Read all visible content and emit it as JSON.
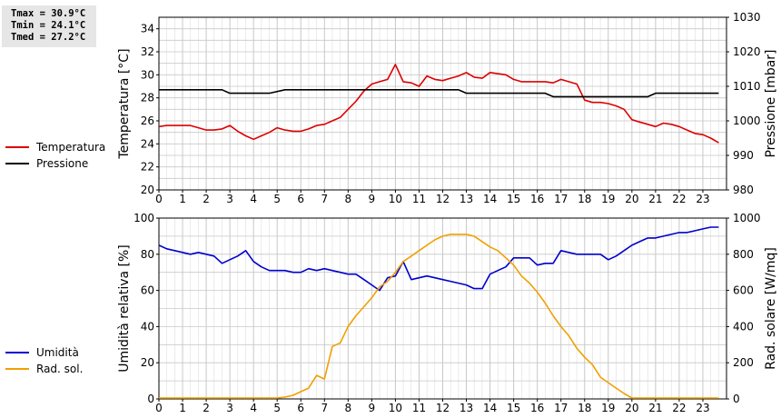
{
  "stats": {
    "tmax": "Tmax = 30.9°C",
    "tmin": "Tmin = 24.1°C",
    "tmed": "Tmed = 27.2°C"
  },
  "colors": {
    "temperature": "#dd0000",
    "pressure": "#000000",
    "humidity": "#0000cc",
    "radiation": "#f0a000",
    "grid": "#c8c8c8"
  },
  "chart_data": [
    {
      "type": "line",
      "xlabel": "",
      "ylabel": "Temperatura [°C]",
      "y2label": "Pressione [mbar]",
      "xlim": [
        0,
        24
      ],
      "xticks": [
        0,
        1,
        2,
        3,
        4,
        5,
        6,
        7,
        8,
        9,
        10,
        11,
        12,
        13,
        14,
        15,
        16,
        17,
        18,
        19,
        20,
        21,
        22,
        23
      ],
      "ylim": [
        20,
        35
      ],
      "yticks": [
        20,
        22,
        24,
        26,
        28,
        30,
        32,
        34
      ],
      "y2lim": [
        980,
        1030
      ],
      "y2ticks": [
        980,
        990,
        1000,
        1010,
        1020,
        1030
      ],
      "grid": true,
      "legend_placement": "left",
      "series": [
        {
          "name": "Temperatura",
          "axis": "left",
          "color": "#dd0000",
          "x": [
            0,
            0.33,
            0.67,
            1,
            1.33,
            1.67,
            2,
            2.33,
            2.67,
            3,
            3.33,
            3.67,
            4,
            4.33,
            4.67,
            5,
            5.33,
            5.67,
            6,
            6.33,
            6.67,
            7,
            7.33,
            7.67,
            8,
            8.33,
            8.67,
            9,
            9.33,
            9.67,
            10,
            10.33,
            10.67,
            11,
            11.33,
            11.67,
            12,
            12.33,
            12.67,
            13,
            13.33,
            13.67,
            14,
            14.33,
            14.67,
            15,
            15.33,
            15.67,
            16,
            16.33,
            16.67,
            17,
            17.33,
            17.67,
            18,
            18.33,
            18.67,
            19,
            19.33,
            19.67,
            20,
            20.33,
            20.67,
            21,
            21.33,
            21.67,
            22,
            22.33,
            22.67,
            23,
            23.33,
            23.67
          ],
          "y": [
            25.5,
            25.6,
            25.6,
            25.6,
            25.6,
            25.4,
            25.2,
            25.2,
            25.3,
            25.6,
            25.1,
            24.7,
            24.4,
            24.7,
            25.0,
            25.4,
            25.2,
            25.1,
            25.1,
            25.3,
            25.6,
            25.7,
            26.0,
            26.3,
            27.0,
            27.7,
            28.6,
            29.2,
            29.4,
            29.6,
            30.9,
            29.4,
            29.3,
            29.0,
            29.9,
            29.6,
            29.5,
            29.7,
            29.9,
            30.2,
            29.8,
            29.7,
            30.2,
            30.1,
            30.0,
            29.6,
            29.4,
            29.4,
            29.4,
            29.4,
            29.3,
            29.6,
            29.4,
            29.2,
            27.8,
            27.6,
            27.6,
            27.5,
            27.3,
            27.0,
            26.1,
            25.9,
            25.7,
            25.5,
            25.8,
            25.7,
            25.5,
            25.2,
            24.9,
            24.8,
            24.5,
            24.1
          ]
        },
        {
          "name": "Pressione",
          "axis": "right",
          "color": "#000000",
          "x": [
            0,
            2.67,
            3,
            4.67,
            5.33,
            8.67,
            9,
            12.67,
            13,
            16.33,
            16.67,
            20.67,
            21,
            23.67
          ],
          "y": [
            1009,
            1009,
            1008,
            1008,
            1009,
            1009,
            1009,
            1009,
            1008,
            1008,
            1007,
            1007,
            1008,
            1008
          ]
        }
      ]
    },
    {
      "type": "line",
      "xlabel": "",
      "ylabel": "Umidità relativa [%]",
      "y2label": "Rad. solare [W/mq]",
      "xlim": [
        0,
        24
      ],
      "xticks": [
        0,
        1,
        2,
        3,
        4,
        5,
        6,
        7,
        8,
        9,
        10,
        11,
        12,
        13,
        14,
        15,
        16,
        17,
        18,
        19,
        20,
        21,
        22,
        23
      ],
      "ylim": [
        0,
        100
      ],
      "yticks": [
        0,
        20,
        40,
        60,
        80,
        100
      ],
      "y2lim": [
        0,
        1000
      ],
      "y2ticks": [
        0,
        200,
        400,
        600,
        800,
        1000
      ],
      "grid": true,
      "legend_placement": "left",
      "series": [
        {
          "name": "Umidità",
          "axis": "left",
          "color": "#0000cc",
          "x": [
            0,
            0.33,
            0.67,
            1,
            1.33,
            1.67,
            2,
            2.33,
            2.67,
            3,
            3.33,
            3.67,
            4,
            4.33,
            4.67,
            5,
            5.33,
            5.67,
            6,
            6.33,
            6.67,
            7,
            7.33,
            7.67,
            8,
            8.33,
            8.67,
            9,
            9.33,
            9.67,
            10,
            10.33,
            10.67,
            11,
            11.33,
            11.67,
            12,
            12.33,
            12.67,
            13,
            13.33,
            13.67,
            14,
            14.33,
            14.67,
            15,
            15.33,
            15.67,
            16,
            16.33,
            16.67,
            17,
            17.33,
            17.67,
            18,
            18.33,
            18.67,
            19,
            19.33,
            19.67,
            20,
            20.33,
            20.67,
            21,
            21.33,
            21.67,
            22,
            22.33,
            22.67,
            23,
            23.33,
            23.67
          ],
          "y": [
            85,
            83,
            82,
            81,
            80,
            81,
            80,
            79,
            75,
            77,
            79,
            82,
            76,
            73,
            71,
            71,
            71,
            70,
            70,
            72,
            71,
            72,
            71,
            70,
            69,
            69,
            66,
            63,
            60,
            67,
            68,
            76,
            66,
            67,
            68,
            67,
            66,
            65,
            64,
            63,
            61,
            61,
            69,
            71,
            73,
            78,
            78,
            78,
            74,
            75,
            75,
            82,
            81,
            80,
            80,
            80,
            80,
            77,
            79,
            82,
            85,
            87,
            89,
            89,
            90,
            91,
            92,
            92,
            93,
            94,
            95,
            95
          ]
        },
        {
          "name": "Rad. sol.",
          "axis": "right",
          "color": "#f0a000",
          "x": [
            0,
            0.33,
            0.67,
            1,
            1.33,
            1.67,
            2,
            2.33,
            2.67,
            3,
            3.33,
            3.67,
            4,
            4.33,
            4.67,
            5,
            5.33,
            5.67,
            6,
            6.33,
            6.67,
            7,
            7.33,
            7.67,
            8,
            8.33,
            8.67,
            9,
            9.33,
            9.67,
            10,
            10.33,
            10.67,
            11,
            11.33,
            11.67,
            12,
            12.33,
            12.67,
            13,
            13.33,
            13.67,
            14,
            14.33,
            14.67,
            15,
            15.33,
            15.67,
            16,
            16.33,
            16.67,
            17,
            17.33,
            17.67,
            18,
            18.33,
            18.67,
            19,
            19.33,
            19.67,
            20,
            20.33,
            20.67,
            21,
            21.33,
            21.67,
            22,
            22.33,
            22.67,
            23,
            23.33,
            23.67
          ],
          "y": [
            5,
            5,
            5,
            5,
            5,
            5,
            5,
            5,
            5,
            5,
            5,
            5,
            5,
            5,
            5,
            5,
            10,
            20,
            40,
            60,
            130,
            110,
            290,
            310,
            400,
            460,
            510,
            560,
            620,
            650,
            700,
            760,
            790,
            820,
            850,
            880,
            900,
            910,
            910,
            910,
            900,
            870,
            840,
            820,
            780,
            740,
            680,
            640,
            590,
            530,
            460,
            400,
            350,
            280,
            230,
            190,
            120,
            90,
            60,
            30,
            5,
            5,
            5,
            5,
            5,
            5,
            5,
            5,
            5,
            5,
            5,
            5
          ]
        }
      ]
    }
  ]
}
